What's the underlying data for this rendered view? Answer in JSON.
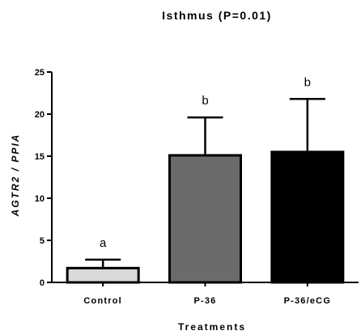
{
  "chart_data": {
    "type": "bar",
    "title": "Isthmus (P=0.01)",
    "xlabel": "Treatments",
    "ylabel": "AGTR2 / PPIA",
    "ylim": [
      0,
      25
    ],
    "yticks": [
      "0",
      "5",
      "10",
      "15",
      "20",
      "25"
    ],
    "categories": [
      "Control",
      "P-36",
      "P-36/eCG"
    ],
    "values": [
      1.7,
      15.1,
      15.5
    ],
    "errors": [
      1.0,
      4.5,
      6.3
    ],
    "significance_letters": [
      "a",
      "b",
      "b"
    ],
    "bar_colors": [
      "#d9d9d9",
      "#6b6b6b",
      "#000000"
    ],
    "grid": false,
    "legend": "none"
  }
}
